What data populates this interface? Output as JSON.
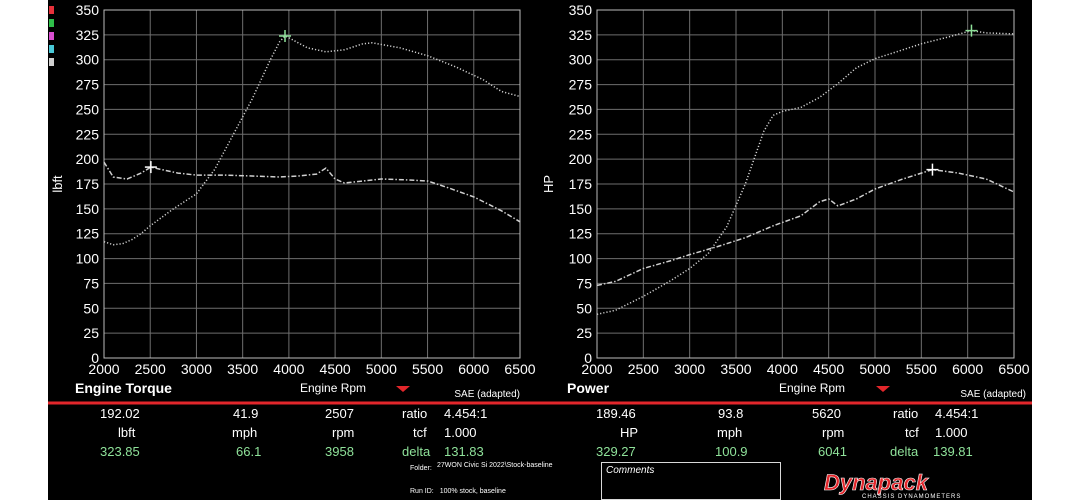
{
  "chart_data": [
    {
      "type": "line",
      "title": "Engine Torque",
      "xlabel": "Engine Rpm",
      "ylabel": "lbft",
      "note": "SAE (adapted)",
      "xlim": [
        2000,
        6500
      ],
      "ylim": [
        0,
        350
      ],
      "xticks": [
        2000,
        2500,
        3000,
        3500,
        4000,
        4500,
        5000,
        5500,
        6000,
        6500
      ],
      "yticks": [
        0,
        25,
        50,
        75,
        100,
        125,
        150,
        175,
        200,
        225,
        250,
        275,
        300,
        325,
        350
      ],
      "grid": true,
      "series": [
        {
          "name": "",
          "color": "#cfcfcf",
          "dash": "dot",
          "x": [
            2000,
            2100,
            2200,
            2300,
            2400,
            2500,
            2750,
            3000,
            3200,
            3400,
            3600,
            3800,
            3900,
            3958,
            4000,
            4200,
            4400,
            4600,
            4800,
            4900,
            5200,
            5500,
            5800,
            6100,
            6300,
            6500
          ],
          "y": [
            117,
            114,
            115,
            119,
            125,
            133,
            150,
            165,
            190,
            225,
            260,
            300,
            318,
            323.85,
            322,
            312,
            308,
            310,
            316,
            317,
            312,
            304,
            293,
            280,
            268,
            263
          ]
        },
        {
          "name": "",
          "color": "#cfcfcf",
          "dash": "dashdot",
          "x": [
            2000,
            2100,
            2250,
            2400,
            2507,
            2600,
            2800,
            3000,
            3300,
            3600,
            3900,
            4100,
            4300,
            4400,
            4500,
            4600,
            4800,
            5000,
            5300,
            5500,
            5700,
            6000,
            6300,
            6500
          ],
          "y": [
            197,
            182,
            180,
            186,
            192.02,
            190,
            186,
            184,
            184,
            183,
            182,
            183,
            185,
            191,
            180,
            176,
            178,
            180,
            179,
            178,
            172,
            162,
            148,
            137
          ]
        }
      ],
      "markers": [
        {
          "x": 3958,
          "y": 323.85,
          "color": "#8fe29a"
        },
        {
          "x": 2507,
          "y": 192.02,
          "color": "#ffffff"
        }
      ]
    },
    {
      "type": "line",
      "title": "Power",
      "xlabel": "Engine Rpm",
      "ylabel": "HP",
      "note": "SAE (adapted)",
      "xlim": [
        2000,
        6500
      ],
      "ylim": [
        0,
        350
      ],
      "xticks": [
        2000,
        2500,
        3000,
        3500,
        4000,
        4500,
        5000,
        5500,
        6000,
        6500
      ],
      "yticks": [
        0,
        25,
        50,
        75,
        100,
        125,
        150,
        175,
        200,
        225,
        250,
        275,
        300,
        325,
        350
      ],
      "grid": true,
      "series": [
        {
          "name": "",
          "color": "#cfcfcf",
          "dash": "dot",
          "x": [
            2000,
            2200,
            2500,
            2800,
            3000,
            3200,
            3400,
            3600,
            3800,
            3900,
            4000,
            4200,
            4400,
            4600,
            4800,
            5000,
            5200,
            5500,
            5800,
            6041,
            6200,
            6500
          ],
          "y": [
            44,
            48,
            62,
            78,
            90,
            105,
            132,
            175,
            228,
            244,
            248,
            252,
            262,
            276,
            292,
            301,
            307,
            316,
            323,
            329.27,
            327,
            326
          ]
        },
        {
          "name": "",
          "color": "#cfcfcf",
          "dash": "dashdot",
          "x": [
            2000,
            2200,
            2500,
            2800,
            3000,
            3300,
            3600,
            3900,
            4200,
            4400,
            4500,
            4600,
            4800,
            5000,
            5300,
            5620,
            5900,
            6200,
            6500
          ],
          "y": [
            73,
            77,
            90,
            98,
            104,
            112,
            121,
            133,
            143,
            157,
            160,
            153,
            160,
            170,
            180,
            189.46,
            186,
            180,
            167
          ]
        }
      ],
      "markers": [
        {
          "x": 6041,
          "y": 329.27,
          "color": "#8fe29a"
        },
        {
          "x": 5620,
          "y": 189.46,
          "color": "#ffffff"
        }
      ]
    }
  ],
  "readout": {
    "left": {
      "row1": [
        "192.02",
        "41.9",
        "2507",
        "ratio",
        "4.454:1"
      ],
      "row2": [
        "lbft",
        "mph",
        "rpm",
        "tcf",
        "1.000"
      ],
      "row3": [
        "323.85",
        "66.1",
        "3958",
        "delta",
        "131.83"
      ]
    },
    "right": {
      "row1": [
        "189.46",
        "93.8",
        "5620",
        "ratio",
        "4.454:1"
      ],
      "row2": [
        "HP",
        "mph",
        "rpm",
        "tcf",
        "1.000"
      ],
      "row3": [
        "329.27",
        "100.9",
        "6041",
        "delta",
        "139.81"
      ]
    }
  },
  "footer": {
    "folder_label": "Folder:",
    "folder_value": "27WON Civic Si 2022\\Stock-baseline",
    "run_label": "Run ID:",
    "run_value": "100% stock, baseline",
    "comments_label": "Comments",
    "logo_text": "Dynapack",
    "logo_subtext": "CHASSIS DYNAMOMETERS"
  },
  "colors": {
    "divider": "#e3262b",
    "peak_text": "#8fe29a",
    "value_text": "#e9e98a",
    "swatches": [
      "#e8313a",
      "#2fbf4a",
      "#d94fd1",
      "#49c9d8",
      "#d0d0d0"
    ]
  }
}
